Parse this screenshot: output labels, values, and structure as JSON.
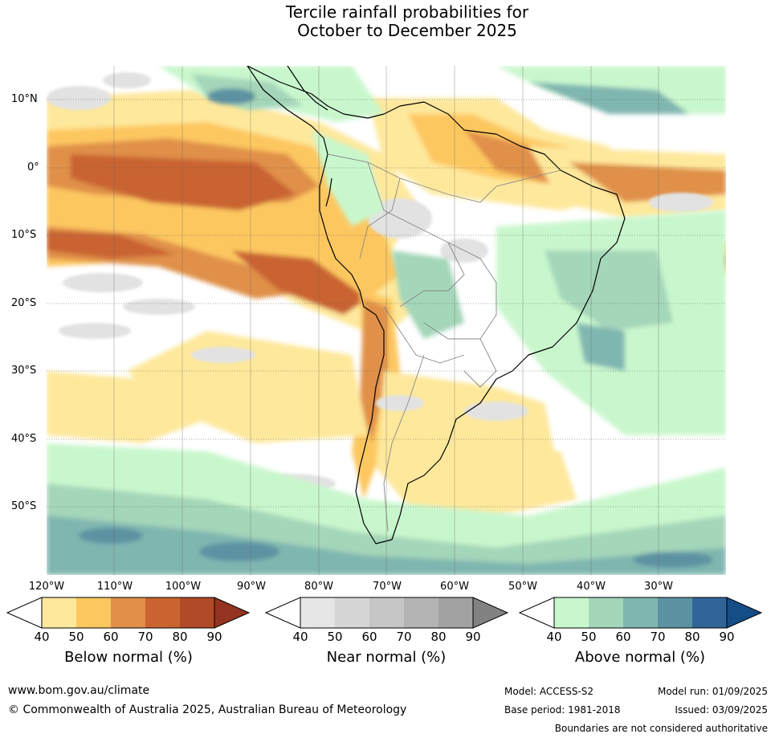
{
  "title": {
    "line1": "Tercile rainfall probabilities for",
    "line2": "October to December 2025"
  },
  "axes": {
    "lat_labels": [
      "10°N",
      "0°",
      "10°S",
      "20°S",
      "30°S",
      "40°S",
      "50°S"
    ],
    "lon_labels": [
      "120°W",
      "110°W",
      "100°W",
      "90°W",
      "80°W",
      "70°W",
      "60°W",
      "50°W",
      "40°W",
      "30°W"
    ]
  },
  "colorbars": [
    {
      "title": "Below normal (%)",
      "ticks": [
        "40",
        "50",
        "60",
        "70",
        "80",
        "90"
      ],
      "colors": [
        "#ffffff",
        "#fee89b",
        "#fdc760",
        "#e09048",
        "#c96430",
        "#b04a27",
        "#943420"
      ]
    },
    {
      "title": "Near normal (%)",
      "ticks": [
        "40",
        "50",
        "60",
        "70",
        "80",
        "90"
      ],
      "colors": [
        "#ffffff",
        "#e6e6e6",
        "#d6d6d6",
        "#c6c6c6",
        "#b4b4b4",
        "#a2a2a2",
        "#828282"
      ]
    },
    {
      "title": "Above normal (%)",
      "ticks": [
        "40",
        "50",
        "60",
        "70",
        "80",
        "90"
      ],
      "colors": [
        "#ffffff",
        "#c9f7cd",
        "#a4d6b9",
        "#80b6b0",
        "#5b92a2",
        "#316598",
        "#154d87"
      ]
    }
  ],
  "footer": {
    "website": "www.bom.gov.au/climate",
    "copyright": "© Commonwealth of Australia 2025, Australian Bureau of Meteorology",
    "model": "Model: ACCESS-S2",
    "base_period": "Base period: 1981-2018",
    "model_run": "Model run: 01/09/2025",
    "issued": "Issued: 03/09/2025",
    "disclaimer": "Boundaries are not considered authoritative"
  }
}
